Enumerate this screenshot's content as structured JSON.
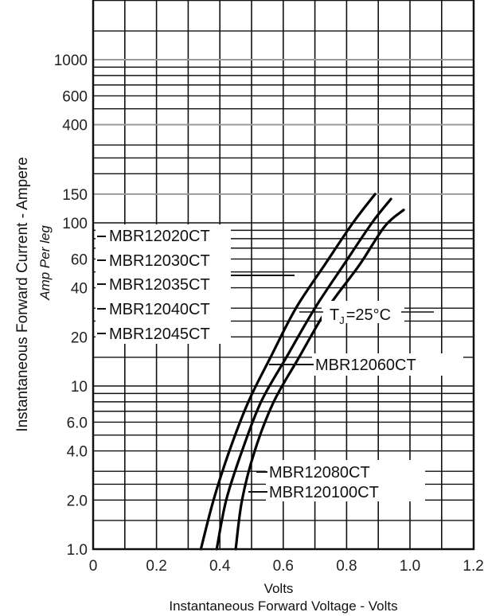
{
  "chart_data": {
    "type": "line",
    "x_scale": "linear",
    "y_scale": "log",
    "xlim": [
      0,
      1.2
    ],
    "ylim": [
      1.0,
      2000
    ],
    "x_ticks": [
      {
        "value": 0,
        "label": "0"
      },
      {
        "value": 0.2,
        "label": "0.2"
      },
      {
        "value": 0.4,
        "label": "0.4"
      },
      {
        "value": 0.6,
        "label": "0.6"
      },
      {
        "value": 0.8,
        "label": "0.8"
      },
      {
        "value": 1.0,
        "label": "1.0"
      },
      {
        "value": 1.2,
        "label": "1.2"
      }
    ],
    "y_ticks": [
      {
        "value": 1.0,
        "label": "1.0"
      },
      {
        "value": 2.0,
        "label": "2.0"
      },
      {
        "value": 4.0,
        "label": "4.0"
      },
      {
        "value": 6.0,
        "label": "6.0"
      },
      {
        "value": 10,
        "label": "10"
      },
      {
        "value": 20,
        "label": "20"
      },
      {
        "value": 40,
        "label": "40"
      },
      {
        "value": 60,
        "label": "60"
      },
      {
        "value": 100,
        "label": "100"
      },
      {
        "value": 150,
        "label": "150"
      },
      {
        "value": 400,
        "label": "400"
      },
      {
        "value": 600,
        "label": "600"
      },
      {
        "value": 1000,
        "label": "1000"
      }
    ],
    "x_gridlines": [
      0.1,
      0.2,
      0.3,
      0.4,
      0.5,
      0.6,
      0.7,
      0.8,
      0.9,
      1.0,
      1.1
    ],
    "y_gridlines": [
      1.5,
      2,
      2.5,
      3,
      4,
      5,
      6,
      7,
      8,
      9,
      10,
      15,
      20,
      25,
      30,
      40,
      50,
      60,
      70,
      80,
      90,
      100,
      150,
      200,
      250,
      300,
      400,
      500,
      600,
      700,
      800,
      900,
      1000,
      1500
    ],
    "grid": true,
    "xlabel_lines": [
      "Volts",
      "Instantaneous Forward Voltage - Volts"
    ],
    "ylabel_lines": [
      "Instantaneous Forward Current - Ampere",
      "Amp Per leg"
    ],
    "temperature_label": "T",
    "temperature_sub": "J",
    "temperature_value": "=25°C",
    "series": [
      {
        "name": "MBR12020CT / MBR12030CT / MBR12035CT / MBR12040CT / MBR12045CT",
        "x": [
          0.34,
          0.38,
          0.43,
          0.49,
          0.56,
          0.64,
          0.73,
          0.82,
          0.89
        ],
        "y": [
          1.0,
          2.0,
          4.0,
          8.0,
          15,
          30,
          55,
          100,
          150
        ]
      },
      {
        "name": "MBR12060CT",
        "x": [
          0.39,
          0.42,
          0.47,
          0.53,
          0.61,
          0.7,
          0.79,
          0.88,
          0.94
        ],
        "y": [
          1.0,
          2.0,
          4.0,
          8.0,
          15,
          30,
          55,
          100,
          140
        ]
      },
      {
        "name": "MBR12080CT / MBR120100CT",
        "x": [
          0.45,
          0.47,
          0.51,
          0.57,
          0.65,
          0.74,
          0.84,
          0.92,
          0.98
        ],
        "y": [
          1.0,
          2.0,
          4.0,
          8.0,
          15,
          30,
          55,
          95,
          120
        ]
      }
    ],
    "curve_labels": [
      {
        "text": "MBR12020CT"
      },
      {
        "text": "MBR12030CT"
      },
      {
        "text": "MBR12035CT"
      },
      {
        "text": "MBR12040CT"
      },
      {
        "text": "MBR12045CT"
      },
      {
        "text": "MBR12060CT"
      },
      {
        "text": "MBR12080CT"
      },
      {
        "text": "MBR120100CT"
      }
    ]
  }
}
